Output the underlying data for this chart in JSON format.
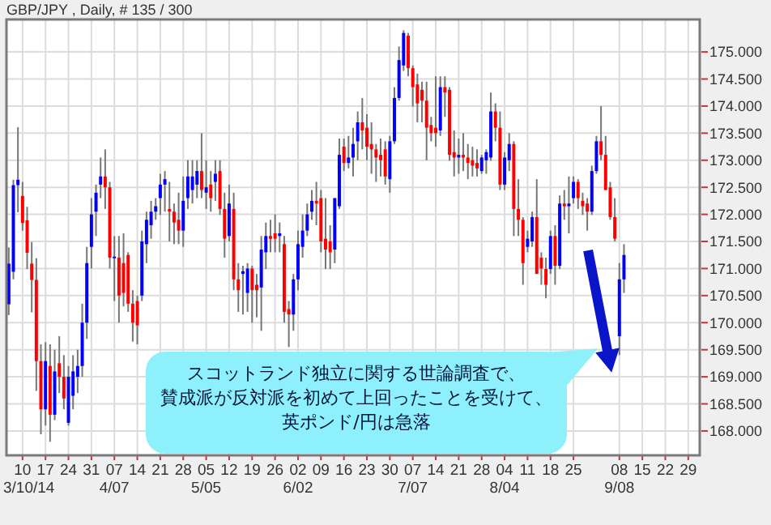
{
  "chart_data": {
    "type": "candlestick",
    "title": "GBP/JPY , Daily, # 135 / 300",
    "categories": [
      null,
      null,
      null,
      "10\n3/10/14",
      null,
      null,
      null,
      null,
      "17",
      null,
      null,
      null,
      null,
      "24",
      null,
      null,
      null,
      null,
      "31",
      null,
      null,
      null,
      null,
      "07\n4/07",
      null,
      null,
      null,
      null,
      "14",
      null,
      null,
      null,
      null,
      "21",
      null,
      null,
      null,
      null,
      "28",
      null,
      null,
      null,
      null,
      "05\n5/05",
      null,
      null,
      null,
      null,
      "12",
      null,
      null,
      null,
      null,
      "19",
      null,
      null,
      null,
      null,
      "26",
      null,
      null,
      null,
      null,
      "02\n6/02",
      null,
      null,
      null,
      null,
      "09",
      null,
      null,
      null,
      null,
      "16",
      null,
      null,
      null,
      null,
      "23",
      null,
      null,
      null,
      null,
      "30",
      null,
      null,
      null,
      null,
      "07\n7/07",
      null,
      null,
      null,
      null,
      "14",
      null,
      null,
      null,
      null,
      "21",
      null,
      null,
      null,
      null,
      "28",
      null,
      null,
      null,
      null,
      "04\n8/04",
      null,
      null,
      null,
      null,
      "11",
      null,
      null,
      null,
      null,
      "18",
      null,
      null,
      null,
      null,
      "25",
      null,
      null,
      null,
      null,
      null,
      null,
      null,
      null,
      null,
      "08\n9/08",
      null,
      null,
      null,
      null,
      "15",
      null,
      null,
      null,
      null,
      "22",
      null,
      null,
      null,
      null,
      "29",
      null,
      null
    ],
    "ohlc": [
      [
        170.34,
        171.39,
        170.14,
        171.09
      ],
      [
        170.94,
        172.64,
        170.8,
        172.54
      ],
      [
        172.54,
        173.61,
        172.04,
        172.64
      ],
      [
        172.34,
        172.6,
        171.7,
        171.84
      ],
      [
        171.89,
        172.14,
        170.99,
        171.29
      ],
      [
        171.09,
        171.49,
        170.19,
        170.79
      ],
      [
        170.79,
        171.19,
        168.74,
        169.29
      ],
      [
        169.29,
        169.6,
        167.94,
        168.4
      ],
      [
        168.4,
        169.64,
        168.1,
        169.29
      ],
      [
        169.2,
        169.6,
        167.8,
        168.3
      ],
      [
        168.3,
        169.5,
        168.2,
        169.1
      ],
      [
        169.25,
        169.75,
        168.7,
        169.0
      ],
      [
        169.0,
        169.4,
        168.4,
        168.6
      ],
      [
        168.15,
        169.2,
        168.1,
        169.0
      ],
      [
        168.65,
        169.4,
        168.4,
        169.1
      ],
      [
        169.0,
        169.5,
        168.7,
        169.2
      ],
      [
        169.2,
        170.35,
        169.0,
        170.0
      ],
      [
        170.0,
        171.4,
        169.7,
        171.1
      ],
      [
        171.4,
        172.3,
        171.0,
        172.0
      ],
      [
        172.05,
        172.55,
        171.6,
        172.4
      ],
      [
        172.55,
        173.05,
        172.3,
        172.7
      ],
      [
        172.7,
        173.2,
        172.1,
        172.5
      ],
      [
        172.5,
        172.6,
        171.0,
        171.2
      ],
      [
        171.2,
        171.6,
        170.4,
        171.22
      ],
      [
        171.2,
        171.6,
        170.0,
        170.5
      ],
      [
        171.1,
        171.65,
        170.3,
        170.55
      ],
      [
        171.25,
        171.3,
        170.2,
        170.35
      ],
      [
        170.35,
        170.6,
        169.65,
        170.0
      ],
      [
        170.4,
        170.5,
        169.6,
        169.95
      ],
      [
        170.5,
        171.7,
        170.4,
        171.5
      ],
      [
        171.45,
        172.05,
        171.1,
        171.9
      ],
      [
        171.8,
        172.25,
        171.55,
        172.05
      ],
      [
        172.05,
        172.3,
        171.9,
        172.15
      ],
      [
        172.3,
        172.75,
        171.99,
        172.55
      ],
      [
        172.55,
        172.8,
        172.05,
        172.65
      ],
      [
        172.1,
        172.6,
        171.5,
        172.05
      ],
      [
        172.05,
        172.2,
        171.45,
        171.85
      ],
      [
        171.9,
        172.4,
        171.45,
        171.7
      ],
      [
        171.7,
        172.7,
        171.4,
        172.25
      ],
      [
        172.3,
        173.0,
        172.1,
        172.7
      ],
      [
        172.45,
        173.0,
        172.2,
        172.7
      ],
      [
        172.55,
        173.0,
        172.3,
        172.8
      ],
      [
        172.8,
        173.5,
        172.3,
        172.45
      ],
      [
        172.4,
        173.0,
        172.1,
        172.5
      ],
      [
        172.55,
        172.8,
        172.05,
        172.3
      ],
      [
        172.6,
        173.0,
        172.25,
        172.75
      ],
      [
        172.8,
        173.0,
        171.99,
        172.1
      ],
      [
        172.1,
        172.4,
        171.2,
        171.55
      ],
      [
        171.6,
        172.55,
        171.5,
        172.2
      ],
      [
        172.1,
        172.4,
        170.6,
        170.8
      ],
      [
        170.8,
        171.1,
        170.2,
        170.6
      ],
      [
        170.9,
        171.05,
        170.15,
        170.95
      ],
      [
        170.55,
        171.1,
        170.2,
        171.0
      ],
      [
        171.0,
        171.05,
        170.0,
        170.6
      ],
      [
        170.7,
        170.9,
        170.1,
        170.6
      ],
      [
        170.65,
        171.6,
        169.85,
        171.35
      ],
      [
        171.3,
        171.85,
        170.99,
        171.6
      ],
      [
        171.6,
        171.9,
        171.3,
        171.55
      ],
      [
        171.65,
        172.0,
        171.3,
        171.55
      ],
      [
        171.6,
        171.85,
        171.3,
        171.65
      ],
      [
        171.45,
        171.6,
        170.0,
        170.2
      ],
      [
        170.25,
        170.4,
        169.55,
        170.15
      ],
      [
        170.15,
        170.9,
        169.85,
        170.8
      ],
      [
        170.8,
        171.7,
        170.6,
        171.45
      ],
      [
        171.4,
        172.0,
        171.2,
        171.7
      ],
      [
        171.7,
        172.2,
        171.6,
        172.0
      ],
      [
        172.05,
        172.45,
        171.9,
        172.25
      ],
      [
        172.25,
        172.6,
        171.8,
        172.2
      ],
      [
        172.3,
        172.45,
        171.3,
        171.5
      ],
      [
        171.55,
        172.3,
        170.99,
        171.35
      ],
      [
        171.5,
        171.8,
        170.99,
        171.3
      ],
      [
        171.35,
        172.3,
        171.1,
        172.3
      ],
      [
        172.15,
        173.4,
        172.1,
        173.1
      ],
      [
        173.25,
        173.4,
        172.8,
        172.95
      ],
      [
        172.95,
        173.45,
        172.85,
        173.05
      ],
      [
        173.05,
        173.6,
        172.7,
        173.3
      ],
      [
        173.35,
        173.9,
        173.0,
        173.7
      ],
      [
        173.7,
        174.15,
        173.2,
        173.55
      ],
      [
        173.6,
        173.85,
        173.0,
        173.25
      ],
      [
        173.3,
        173.7,
        172.75,
        173.2
      ],
      [
        173.2,
        173.3,
        172.6,
        173.05
      ],
      [
        173.1,
        173.4,
        172.7,
        173.0
      ],
      [
        173.2,
        173.35,
        172.55,
        172.7
      ],
      [
        172.65,
        173.45,
        172.4,
        173.35
      ],
      [
        173.35,
        174.35,
        173.3,
        174.15
      ],
      [
        174.15,
        175.1,
        174.1,
        174.85
      ],
      [
        174.75,
        175.4,
        174.65,
        175.35
      ],
      [
        175.3,
        175.35,
        174.55,
        174.7
      ],
      [
        174.7,
        174.75,
        173.99,
        174.35
      ],
      [
        174.4,
        174.6,
        173.7,
        174.05
      ],
      [
        174.3,
        174.45,
        173.7,
        174.1
      ],
      [
        174.1,
        174.45,
        173.0,
        173.6
      ],
      [
        173.65,
        173.8,
        173.35,
        173.5
      ],
      [
        173.6,
        174.55,
        173.25,
        173.5
      ],
      [
        173.55,
        174.55,
        173.45,
        174.35
      ],
      [
        174.35,
        174.55,
        173.8,
        174.25
      ],
      [
        174.3,
        174.35,
        172.99,
        173.1
      ],
      [
        173.15,
        173.55,
        172.7,
        173.05
      ],
      [
        173.05,
        173.4,
        172.75,
        173.1
      ],
      [
        173.1,
        173.5,
        172.8,
        173.05
      ],
      [
        173.05,
        173.3,
        172.65,
        172.95
      ],
      [
        173.0,
        173.25,
        172.7,
        172.9
      ],
      [
        172.95,
        173.2,
        172.7,
        172.85
      ],
      [
        172.8,
        173.1,
        172.75,
        173.05
      ],
      [
        173.0,
        173.2,
        172.75,
        173.15
      ],
      [
        173.05,
        174.25,
        172.99,
        173.9
      ],
      [
        173.9,
        174.05,
        173.35,
        173.6
      ],
      [
        173.6,
        173.9,
        172.45,
        172.55
      ],
      [
        172.55,
        173.15,
        172.45,
        173.05
      ],
      [
        173.0,
        173.5,
        172.8,
        173.3
      ],
      [
        173.3,
        173.35,
        171.6,
        172.1
      ],
      [
        172.1,
        172.65,
        171.6,
        171.9
      ],
      [
        171.9,
        171.95,
        170.7,
        171.1
      ],
      [
        171.4,
        171.7,
        171.3,
        171.55
      ],
      [
        171.5,
        172.05,
        171.4,
        171.95
      ],
      [
        171.95,
        172.65,
        170.9,
        170.9
      ],
      [
        171.2,
        171.3,
        170.7,
        171.0
      ],
      [
        170.99,
        171.2,
        170.45,
        170.7
      ],
      [
        170.99,
        171.7,
        170.9,
        171.6
      ],
      [
        171.6,
        171.8,
        170.7,
        171.05
      ],
      [
        171.05,
        172.35,
        170.99,
        172.2
      ],
      [
        172.2,
        172.45,
        171.9,
        172.15
      ],
      [
        172.15,
        172.7,
        171.65,
        172.2
      ],
      [
        172.3,
        172.7,
        172.2,
        172.6
      ],
      [
        172.6,
        172.65,
        172.1,
        172.3
      ],
      [
        172.25,
        172.4,
        171.99,
        172.15
      ],
      [
        172.2,
        172.3,
        171.7,
        172.05
      ],
      [
        172.05,
        172.9,
        171.99,
        172.8
      ],
      [
        172.8,
        173.45,
        172.75,
        173.35
      ],
      [
        173.35,
        174.0,
        173.0,
        173.1
      ],
      [
        173.1,
        173.45,
        172.45,
        172.45
      ],
      [
        172.5,
        172.6,
        171.9,
        171.95
      ],
      [
        171.95,
        172.3,
        171.5,
        171.55
      ],
      [
        169.75,
        171.1,
        169.4,
        170.8
      ],
      [
        170.8,
        171.45,
        170.55,
        171.25
      ],
      null,
      null,
      null,
      null,
      null,
      null,
      null,
      null,
      null,
      null,
      null,
      null,
      null,
      null,
      null,
      null
    ],
    "ylim": [
      167.55,
      175.6
    ],
    "yticks": [
      {
        "value": 168,
        "label": "168.000"
      },
      {
        "value": 168.5,
        "label": "168.500"
      },
      {
        "value": 169,
        "label": "169.000"
      },
      {
        "value": 169.5,
        "label": "169.500"
      },
      {
        "value": 170,
        "label": "170.000"
      },
      {
        "value": 170.5,
        "label": "170.500"
      },
      {
        "value": 171,
        "label": "171.000"
      },
      {
        "value": 171.5,
        "label": "171.500"
      },
      {
        "value": 172,
        "label": "172.000"
      },
      {
        "value": 172.5,
        "label": "172.500"
      },
      {
        "value": 173,
        "label": "173.000"
      },
      {
        "value": 173.5,
        "label": "173.500"
      },
      {
        "value": 174,
        "label": "174.000"
      },
      {
        "value": 174.5,
        "label": "174.500"
      },
      {
        "value": 175,
        "label": "175.000"
      }
    ],
    "grid": true,
    "annotations": [
      "スコットランド独立に関する世論調査で、",
      "賛成派が反対派を初めて上回ったことを受けて、",
      "英ポンド/円は急落"
    ]
  }
}
